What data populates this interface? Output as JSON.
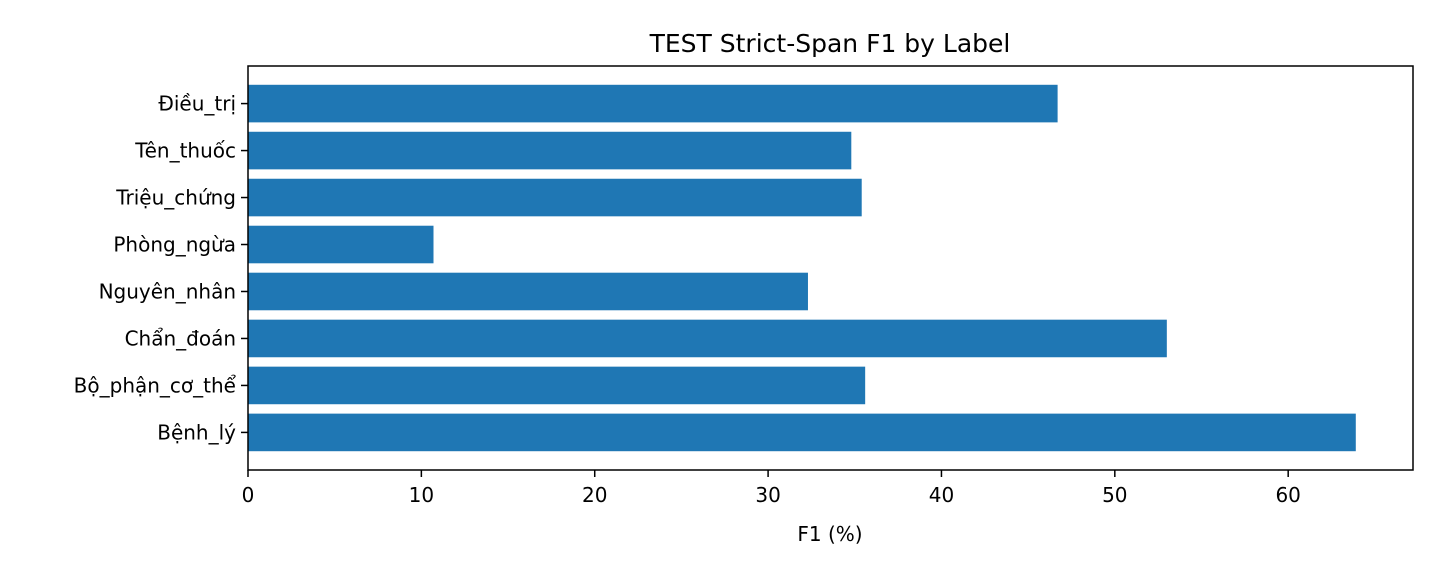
{
  "chart_data": {
    "type": "bar",
    "orientation": "horizontal",
    "title": "TEST Strict-Span F1 by Label",
    "xlabel": "F1 (%)",
    "ylabel": "",
    "categories": [
      "Bệnh_lý",
      "Bộ_phận_cơ_thể",
      "Chẩn_đoán",
      "Nguyên_nhân",
      "Phòng_ngừa",
      "Triệu_chứng",
      "Tên_thuốc",
      "Điều_trị"
    ],
    "values": [
      63.9,
      35.6,
      53.0,
      32.3,
      10.7,
      35.4,
      34.8,
      46.7
    ],
    "xlim": [
      0,
      67.2
    ],
    "xticks": [
      0,
      10,
      20,
      30,
      40,
      50,
      60
    ],
    "grid": false,
    "bar_color": "#1f77b4"
  }
}
